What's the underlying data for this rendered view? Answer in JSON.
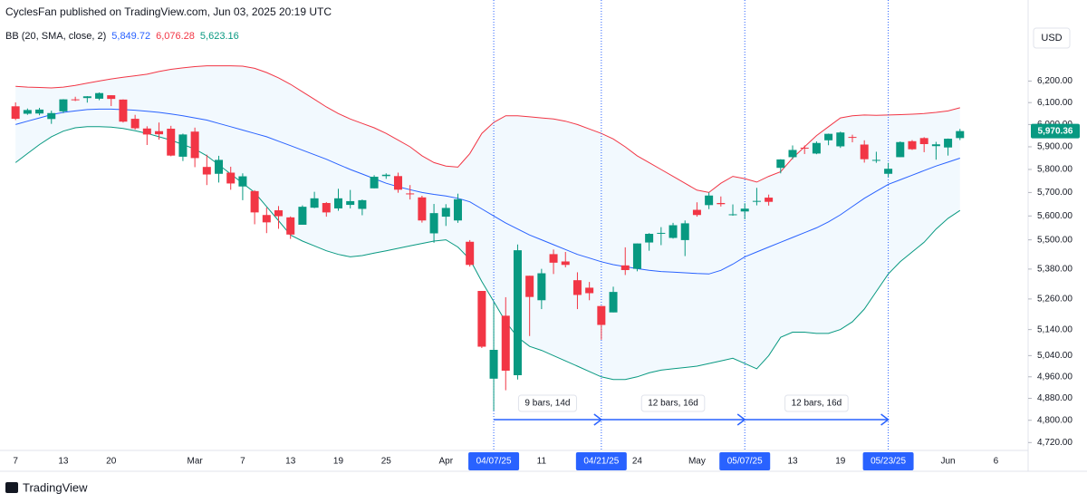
{
  "header": {
    "title": "CyclesFan published on TradingView.com, Jun 03, 2025 20:19 UTC",
    "currency": "USD"
  },
  "footer": {
    "brand": "TradingView"
  },
  "chart_data": {
    "type": "candlestick",
    "log": true,
    "grid": false,
    "up_color": "#089981",
    "down_color": "#f23645",
    "ylim": [
      4692,
      6591
    ],
    "yticks": [
      {
        "value": 6200,
        "label": "6,200.00"
      },
      {
        "value": 6100,
        "label": "6,100.00"
      },
      {
        "value": 6000,
        "label": "6,000.00"
      },
      {
        "value": 5900,
        "label": "5,900.00"
      },
      {
        "value": 5800,
        "label": "5,800.00"
      },
      {
        "value": 5700,
        "label": "5,700.00"
      },
      {
        "value": 5600,
        "label": "5,600.00"
      },
      {
        "value": 5500,
        "label": "5,500.00"
      },
      {
        "value": 5380,
        "label": "5,380.00"
      },
      {
        "value": 5260,
        "label": "5,260.00"
      },
      {
        "value": 5140,
        "label": "5,140.00"
      },
      {
        "value": 5040,
        "label": "5,040.00"
      },
      {
        "value": 4960,
        "label": "4,960.00"
      },
      {
        "value": 4880,
        "label": "4,880.00"
      },
      {
        "value": 4800,
        "label": "4,800.00"
      },
      {
        "value": 4720,
        "label": "4,720.00"
      }
    ],
    "xlim": [
      -1.3,
      84.7
    ],
    "xticks": [
      {
        "value": 0,
        "label": "7"
      },
      {
        "value": 4,
        "label": "13"
      },
      {
        "value": 8,
        "label": "20"
      },
      {
        "value": 15,
        "label": "Mar"
      },
      {
        "value": 19,
        "label": "7"
      },
      {
        "value": 23,
        "label": "13"
      },
      {
        "value": 27,
        "label": "19"
      },
      {
        "value": 31,
        "label": "25"
      },
      {
        "value": 36,
        "label": "Apr"
      },
      {
        "value": 44,
        "label": "11"
      },
      {
        "value": 52,
        "label": "24"
      },
      {
        "value": 57,
        "label": "May"
      },
      {
        "value": 65,
        "label": "13"
      },
      {
        "value": 69,
        "label": "19"
      },
      {
        "value": 78,
        "label": "Jun"
      },
      {
        "value": 82,
        "label": "6"
      }
    ],
    "markers": [
      {
        "value": 40,
        "label": "04/07/25"
      },
      {
        "value": 49,
        "label": "04/21/25"
      },
      {
        "value": 61,
        "label": "05/07/25"
      },
      {
        "value": 73,
        "label": "05/23/25"
      }
    ],
    "measures": [
      {
        "from": 40,
        "to": 49,
        "label": "9 bars, 14d"
      },
      {
        "from": 49,
        "to": 61,
        "label": "12 bars, 16d"
      },
      {
        "from": 61,
        "to": 73,
        "label": "12 bars, 16d"
      }
    ],
    "close_last_label": "5,970.36",
    "open": [
      6083,
      6049,
      6050,
      6025,
      6060,
      6115,
      6121,
      6118,
      6134,
      6114,
      6026,
      5982,
      5970,
      5981,
      5856,
      5968,
      5811,
      5781,
      5786,
      5726,
      5706,
      5604,
      5624,
      5594,
      5563,
      5635,
      5655,
      5632,
      5647,
      5630,
      5718,
      5771,
      5771,
      5696,
      5679,
      5527,
      5597,
      5581,
      5492,
      5292,
      4953,
      5194,
      4966,
      5353,
      5255,
      5441,
      5411,
      5335,
      5305,
      5232,
      5207,
      5395,
      5381,
      5489,
      5529,
      5508,
      5499,
      5626,
      5646,
      5655,
      5606,
      5619,
      5663,
      5678,
      5807,
      5854,
      5896,
      5870,
      5929,
      5902,
      5944,
      5910,
      5842,
      5781,
      5854,
      5925,
      5939,
      5903,
      5897,
      5939
    ],
    "high": [
      6101,
      6073,
      6076,
      6063,
      6116,
      6127,
      6130,
      6147,
      6134,
      6115,
      6044,
      5992,
      6009,
      5994,
      5959,
      5986,
      5865,
      5860,
      5812,
      5783,
      5710,
      5636,
      5642,
      5598,
      5645,
      5703,
      5659,
      5716,
      5711,
      5670,
      5775,
      5783,
      5786,
      5732,
      5686,
      5651,
      5650,
      5695,
      5499,
      5292,
      5246,
      5267,
      5481,
      5353,
      5381,
      5460,
      5450,
      5367,
      5328,
      5232,
      5309,
      5469,
      5485,
      5528,
      5553,
      5571,
      5581,
      5658,
      5700,
      5683,
      5649,
      5654,
      5720,
      5691,
      5845,
      5906,
      5906,
      5924,
      5959,
      5968,
      5954,
      5929,
      5878,
      5829,
      5924,
      5930,
      5943,
      5922,
      5937,
      5980
    ],
    "low": [
      6020,
      6044,
      6042,
      6003,
      6052,
      6107,
      6100,
      6111,
      6084,
      6009,
      5977,
      5908,
      5932,
      5858,
      5837,
      5810,
      5732,
      5743,
      5712,
      5667,
      5565,
      5528,
      5546,
      5504,
      5563,
      5633,
      5597,
      5622,
      5632,
      5603,
      5718,
      5759,
      5699,
      5670,
      5572,
      5488,
      5558,
      5571,
      5390,
      5069,
      4835,
      4910,
      4950,
      5115,
      5220,
      5360,
      5387,
      5220,
      5255,
      5101,
      5207,
      5356,
      5371,
      5455,
      5478,
      5505,
      5433,
      5597,
      5629,
      5640,
      5601,
      5586,
      5645,
      5644,
      5783,
      5845,
      5868,
      5867,
      5907,
      5895,
      5920,
      5830,
      5829,
      5767,
      5854,
      5886,
      5876,
      5843,
      5861,
      5930
    ],
    "close": [
      6026,
      6066,
      6068,
      6052,
      6115,
      6114,
      6129,
      6144,
      6117,
      6013,
      5983,
      5955,
      5956,
      5861,
      5955,
      5850,
      5778,
      5842,
      5739,
      5770,
      5615,
      5573,
      5599,
      5522,
      5639,
      5675,
      5615,
      5675,
      5663,
      5667,
      5768,
      5777,
      5712,
      5693,
      5581,
      5612,
      5634,
      5671,
      5397,
      5074,
      5062,
      4983,
      5457,
      5268,
      5363,
      5406,
      5397,
      5276,
      5283,
      5158,
      5288,
      5376,
      5485,
      5525,
      5529,
      5561,
      5569,
      5604,
      5687,
      5650,
      5607,
      5631,
      5664,
      5660,
      5844,
      5886,
      5893,
      5917,
      5958,
      5964,
      5940,
      5845,
      5842,
      5803,
      5921,
      5889,
      5912,
      5911,
      5936,
      5970.36
    ],
    "indicator": {
      "label": "BB (20, SMA, close, 2)",
      "fill": "#2196f3",
      "bands": [
        {
          "color": "#2962ff",
          "last_label": "5,849.72",
          "values": [
            6000,
            6015,
            6030,
            6045,
            6055,
            6062,
            6068,
            6070,
            6070,
            6068,
            6065,
            6060,
            6055,
            6048,
            6040,
            6030,
            6020,
            6005,
            5990,
            5975,
            5960,
            5945,
            5925,
            5905,
            5885,
            5865,
            5845,
            5822,
            5800,
            5780,
            5760,
            5740,
            5725,
            5712,
            5700,
            5692,
            5685,
            5675,
            5660,
            5630,
            5600,
            5570,
            5545,
            5520,
            5500,
            5480,
            5460,
            5440,
            5425,
            5410,
            5398,
            5390,
            5382,
            5375,
            5370,
            5368,
            5365,
            5362,
            5360,
            5375,
            5400,
            5430,
            5450,
            5470,
            5490,
            5510,
            5530,
            5550,
            5575,
            5605,
            5640,
            5675,
            5705,
            5735,
            5755,
            5775,
            5795,
            5815,
            5832,
            5849.72
          ]
        },
        {
          "color": "#f23645",
          "last_label": "6,076.28",
          "values": [
            6175,
            6172,
            6170,
            6168,
            6172,
            6180,
            6190,
            6200,
            6210,
            6218,
            6225,
            6232,
            6245,
            6255,
            6262,
            6268,
            6272,
            6272,
            6272,
            6270,
            6260,
            6240,
            6215,
            6185,
            6150,
            6115,
            6080,
            6050,
            6025,
            6005,
            5985,
            5960,
            5930,
            5900,
            5860,
            5830,
            5815,
            5810,
            5870,
            5960,
            6010,
            6040,
            6040,
            6035,
            6030,
            6025,
            6015,
            6000,
            5980,
            5960,
            5935,
            5900,
            5860,
            5830,
            5800,
            5770,
            5740,
            5710,
            5700,
            5740,
            5770,
            5760,
            5745,
            5770,
            5790,
            5850,
            5900,
            5950,
            5990,
            6030,
            6040,
            6043,
            6042,
            6043,
            6045,
            6047,
            6050,
            6055,
            6062,
            6076.28
          ]
        },
        {
          "color": "#089981",
          "last_label": "5,623.16",
          "values": [
            5830,
            5870,
            5910,
            5945,
            5970,
            5985,
            5990,
            5990,
            5988,
            5982,
            5972,
            5960,
            5945,
            5930,
            5910,
            5890,
            5860,
            5820,
            5780,
            5740,
            5700,
            5640,
            5580,
            5520,
            5495,
            5475,
            5455,
            5440,
            5430,
            5435,
            5445,
            5455,
            5465,
            5475,
            5485,
            5495,
            5500,
            5470,
            5420,
            5330,
            5250,
            5170,
            5110,
            5075,
            5060,
            5040,
            5020,
            5000,
            4980,
            4960,
            4950,
            4950,
            4960,
            4975,
            4985,
            4990,
            4995,
            5000,
            5010,
            5020,
            5030,
            5010,
            4990,
            5040,
            5110,
            5130,
            5130,
            5125,
            5125,
            5140,
            5170,
            5220,
            5290,
            5360,
            5410,
            5450,
            5490,
            5545,
            5590,
            5623.16
          ]
        }
      ]
    }
  }
}
